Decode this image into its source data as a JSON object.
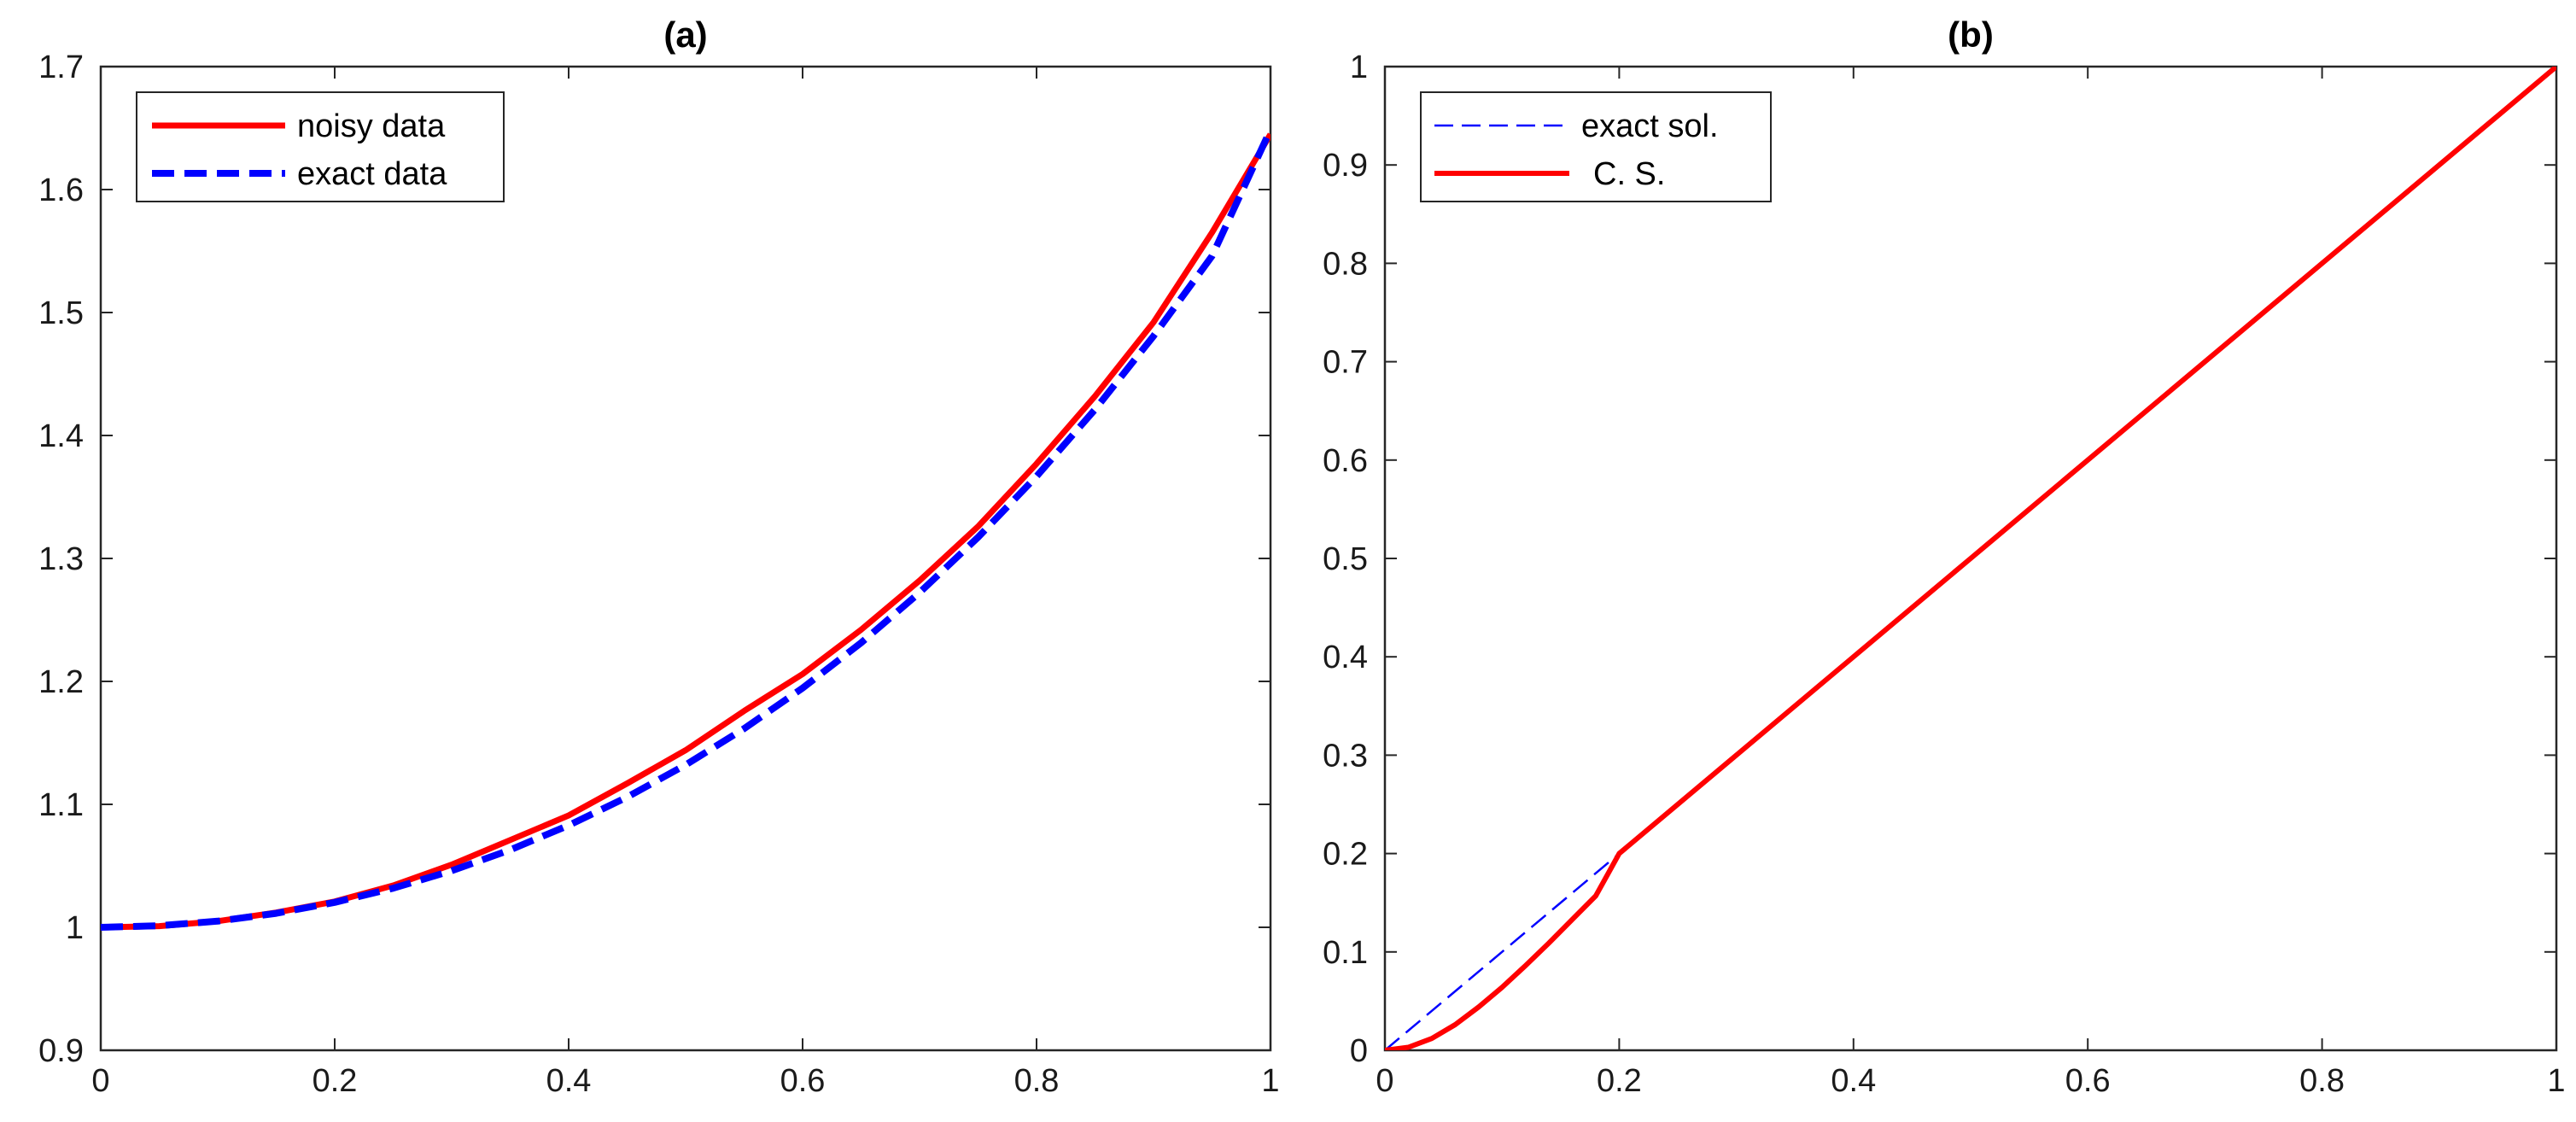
{
  "chart_data": [
    {
      "type": "line",
      "title": "(a)",
      "xlim": [
        0,
        1
      ],
      "ylim": [
        0.9,
        1.7
      ],
      "xticks": [
        0,
        0.2,
        0.4,
        0.6,
        0.8,
        1
      ],
      "xtick_labels": [
        "0",
        "0.2",
        "0.4",
        "0.6",
        "0.8",
        "1"
      ],
      "yticks": [
        0.9,
        1.0,
        1.1,
        1.2,
        1.3,
        1.4,
        1.5,
        1.6,
        1.7
      ],
      "ytick_labels": [
        "0.9",
        "1",
        "1.1",
        "1.2",
        "1.3",
        "1.4",
        "1.5",
        "1.6",
        "1.7"
      ],
      "grid": false,
      "legend_position": "top-left",
      "x": [
        0,
        0.05,
        0.1,
        0.15,
        0.2,
        0.25,
        0.3,
        0.35,
        0.4,
        0.45,
        0.5,
        0.55,
        0.6,
        0.65,
        0.7,
        0.75,
        0.8,
        0.85,
        0.9,
        0.95,
        1.0
      ],
      "series": [
        {
          "name": "noisy data",
          "color": "#ff0000",
          "style": "solid",
          "values": [
            1.0,
            1.001,
            1.005,
            1.012,
            1.021,
            1.034,
            1.051,
            1.071,
            1.091,
            1.117,
            1.144,
            1.176,
            1.206,
            1.242,
            1.282,
            1.326,
            1.377,
            1.432,
            1.492,
            1.565,
            1.645
          ]
        },
        {
          "name": "exact data",
          "color": "#0000ff",
          "style": "dashed",
          "values": [
            1.0,
            1.0013,
            1.005,
            1.0114,
            1.0203,
            1.0318,
            1.046,
            1.063,
            1.0829,
            1.1059,
            1.1321,
            1.1616,
            1.1946,
            1.2314,
            1.2722,
            1.3172,
            1.3668,
            1.4212,
            1.4808,
            1.5459,
            1.6487
          ]
        }
      ]
    },
    {
      "type": "line",
      "title": "(b)",
      "xlim": [
        0,
        1
      ],
      "ylim": [
        0,
        1
      ],
      "xticks": [
        0,
        0.2,
        0.4,
        0.6,
        0.8,
        1
      ],
      "xtick_labels": [
        "0",
        "0.2",
        "0.4",
        "0.6",
        "0.8",
        "1"
      ],
      "yticks": [
        0,
        0.1,
        0.2,
        0.3,
        0.4,
        0.5,
        0.6,
        0.7,
        0.8,
        0.9,
        1
      ],
      "ytick_labels": [
        "0",
        "0.1",
        "0.2",
        "0.3",
        "0.4",
        "0.5",
        "0.6",
        "0.7",
        "0.8",
        "0.9",
        "1"
      ],
      "grid": false,
      "legend_position": "top-left",
      "series": [
        {
          "name": "exact sol.",
          "color": "#0000ff",
          "style": "dashed",
          "x": [
            0,
            0.5,
            1
          ],
          "values": [
            0,
            0.5,
            1
          ]
        },
        {
          "name": "C. S.",
          "color": "#ff0000",
          "style": "solid",
          "x": [
            0,
            0.02,
            0.04,
            0.06,
            0.08,
            0.1,
            0.12,
            0.14,
            0.16,
            0.18,
            0.2,
            0.5,
            1.0
          ],
          "values": [
            0,
            0.003,
            0.012,
            0.026,
            0.044,
            0.064,
            0.086,
            0.109,
            0.133,
            0.157,
            0.2,
            0.5,
            1.0
          ]
        }
      ]
    }
  ]
}
